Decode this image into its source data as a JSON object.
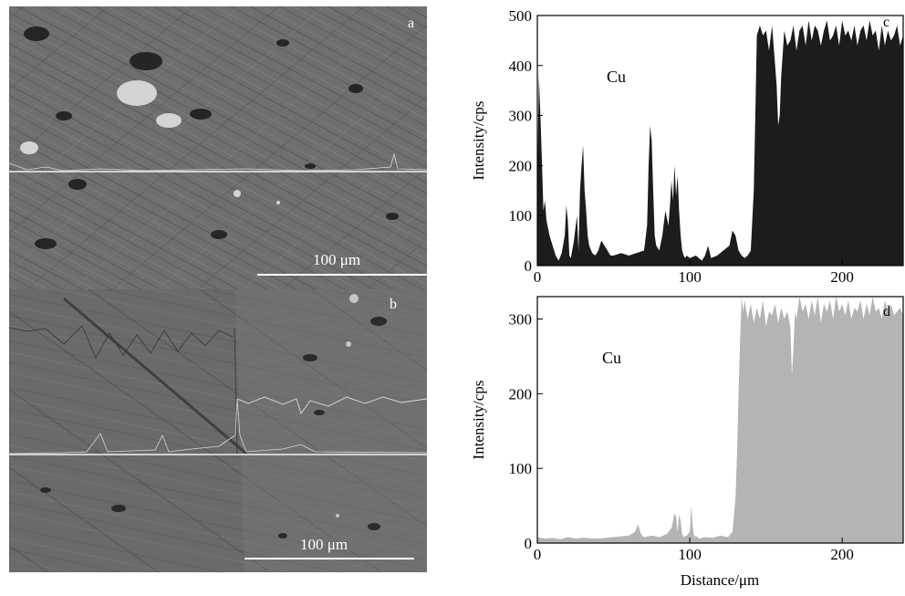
{
  "micrographs": [
    {
      "letter": "a",
      "scale_label": "100 μm"
    },
    {
      "letter": "b",
      "scale_label": "100 μm"
    }
  ],
  "chart_data": [
    {
      "type": "area",
      "panel_letter": "c",
      "element_label": "Cu",
      "ylabel": "Intensity/cps",
      "xlabel": "",
      "xlim": [
        0,
        240
      ],
      "ylim": [
        0,
        500
      ],
      "x_ticks": [
        0,
        100,
        200
      ],
      "y_ticks": [
        0,
        100,
        200,
        300,
        400,
        500
      ],
      "fill_color": "#1c1c1c",
      "grid": false,
      "x": [
        0,
        1,
        2,
        3,
        4,
        5,
        6,
        8,
        10,
        12,
        14,
        16,
        18,
        19,
        20,
        21,
        22,
        24,
        26,
        27,
        28,
        29,
        30,
        31,
        32,
        33,
        34,
        36,
        38,
        40,
        42,
        44,
        46,
        48,
        50,
        55,
        60,
        65,
        70,
        72,
        73,
        74,
        75,
        76,
        77,
        78,
        80,
        82,
        84,
        86,
        87,
        88,
        89,
        90,
        91,
        92,
        93,
        94,
        95,
        96,
        97,
        98,
        100,
        104,
        108,
        110,
        112,
        114,
        118,
        122,
        126,
        128,
        130,
        132,
        134,
        136,
        138,
        140,
        141,
        142,
        143,
        144,
        146,
        148,
        150,
        152,
        154,
        156,
        157,
        158,
        159,
        160,
        162,
        164,
        166,
        168,
        170,
        172,
        174,
        176,
        178,
        180,
        182,
        184,
        186,
        188,
        190,
        192,
        194,
        196,
        198,
        200,
        202,
        204,
        206,
        208,
        210,
        212,
        214,
        216,
        218,
        220,
        222,
        224,
        226,
        228,
        230,
        232,
        234,
        236,
        238,
        240
      ],
      "y": [
        160,
        380,
        300,
        210,
        110,
        130,
        90,
        60,
        40,
        20,
        10,
        25,
        60,
        120,
        90,
        20,
        15,
        50,
        100,
        30,
        150,
        200,
        240,
        150,
        110,
        60,
        40,
        25,
        20,
        30,
        50,
        40,
        30,
        20,
        20,
        25,
        20,
        25,
        30,
        80,
        200,
        280,
        250,
        150,
        60,
        40,
        30,
        60,
        110,
        80,
        120,
        170,
        130,
        200,
        140,
        180,
        110,
        60,
        30,
        20,
        15,
        20,
        15,
        20,
        10,
        20,
        40,
        15,
        20,
        30,
        40,
        70,
        60,
        30,
        20,
        15,
        20,
        30,
        90,
        150,
        300,
        460,
        480,
        460,
        470,
        430,
        480,
        400,
        360,
        280,
        300,
        380,
        470,
        440,
        450,
        480,
        430,
        470,
        480,
        440,
        490,
        450,
        480,
        470,
        440,
        470,
        490,
        450,
        460,
        480,
        440,
        490,
        460,
        470,
        450,
        480,
        440,
        470,
        480,
        450,
        490,
        460,
        470,
        430,
        480,
        440,
        470,
        450,
        460,
        480,
        440,
        460
      ]
    },
    {
      "type": "area",
      "panel_letter": "d",
      "element_label": "Cu",
      "ylabel": "Intensity/cps",
      "xlabel": "Distance/μm",
      "xlim": [
        0,
        240
      ],
      "ylim": [
        0,
        330
      ],
      "x_ticks": [
        0,
        100,
        200
      ],
      "y_ticks": [
        0,
        100,
        200,
        300
      ],
      "fill_color": "#b4b4b4",
      "grid": false,
      "x": [
        0,
        5,
        10,
        15,
        20,
        25,
        30,
        40,
        50,
        60,
        64,
        66,
        68,
        70,
        75,
        80,
        85,
        88,
        90,
        91,
        92,
        93,
        94,
        95,
        96,
        98,
        100,
        101,
        102,
        103,
        104,
        106,
        110,
        115,
        120,
        125,
        128,
        130,
        131,
        132,
        133,
        134,
        135,
        136,
        138,
        140,
        142,
        144,
        146,
        148,
        150,
        152,
        154,
        156,
        158,
        160,
        162,
        164,
        166,
        167,
        168,
        169,
        170,
        172,
        174,
        176,
        178,
        180,
        182,
        184,
        186,
        188,
        190,
        192,
        194,
        196,
        198,
        200,
        202,
        204,
        206,
        208,
        210,
        212,
        214,
        216,
        218,
        220,
        222,
        224,
        226,
        228,
        230,
        232,
        234,
        236,
        238,
        240
      ],
      "y": [
        8,
        6,
        7,
        5,
        8,
        6,
        7,
        6,
        8,
        10,
        15,
        25,
        12,
        8,
        10,
        8,
        12,
        20,
        40,
        35,
        15,
        38,
        30,
        12,
        8,
        10,
        15,
        50,
        20,
        8,
        10,
        6,
        8,
        7,
        10,
        8,
        15,
        60,
        120,
        200,
        270,
        330,
        310,
        325,
        300,
        320,
        295,
        315,
        300,
        325,
        290,
        310,
        305,
        320,
        295,
        315,
        300,
        310,
        290,
        225,
        260,
        310,
        300,
        330,
        310,
        320,
        300,
        325,
        305,
        330,
        295,
        320,
        310,
        325,
        300,
        330,
        310,
        320,
        305,
        325,
        300,
        315,
        310,
        325,
        300,
        320,
        305,
        330,
        310,
        315,
        300,
        325,
        310,
        320,
        305,
        310,
        315,
        305
      ]
    }
  ]
}
